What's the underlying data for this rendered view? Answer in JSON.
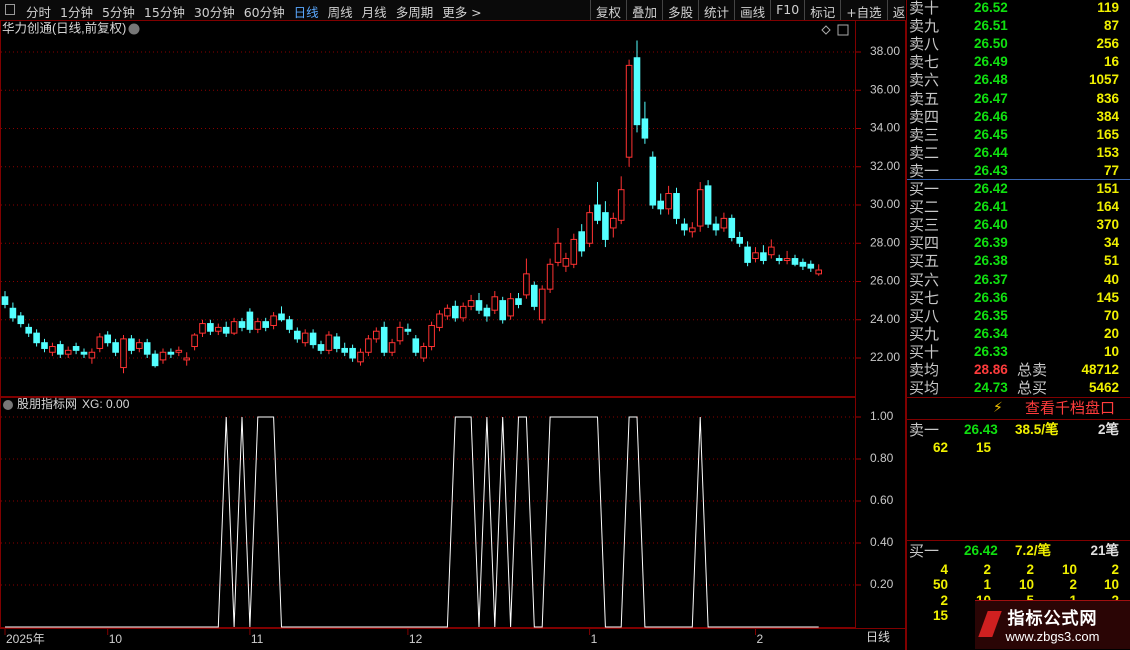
{
  "toolbar": {
    "left": [
      "分时",
      "1分钟",
      "5分钟",
      "15分钟",
      "30分钟",
      "60分钟",
      "日线",
      "周线",
      "月线",
      "多周期",
      "更多 >"
    ],
    "right": [
      "复权",
      "叠加",
      "多股",
      "统计",
      "画线",
      "F10",
      "标记",
      "+自选",
      "返回"
    ]
  },
  "chart_data": [
    {
      "type": "candlestick",
      "title": "华力创通(日线,前复权)",
      "up_color": "#ff3232",
      "down_color": "#54ffff",
      "grid": true,
      "ylim": [
        20,
        39.6
      ],
      "yticks": [
        {
          "value": 22,
          "label": "22.00"
        },
        {
          "value": 24,
          "label": "24.00"
        },
        {
          "value": 26,
          "label": "26.00"
        },
        {
          "value": 28,
          "label": "28.00"
        },
        {
          "value": 30,
          "label": "30.00"
        },
        {
          "value": 32,
          "label": "32.00"
        },
        {
          "value": 34,
          "label": "34.00"
        },
        {
          "value": 36,
          "label": "36.00"
        },
        {
          "value": 38,
          "label": "38.00"
        }
      ],
      "categories": [
        "2025年",
        null,
        null,
        null,
        null,
        null,
        null,
        null,
        null,
        null,
        null,
        null,
        null,
        "10",
        null,
        null,
        null,
        null,
        null,
        null,
        null,
        null,
        null,
        null,
        null,
        null,
        null,
        null,
        null,
        null,
        null,
        "11",
        null,
        null,
        null,
        null,
        null,
        null,
        null,
        null,
        null,
        null,
        null,
        null,
        null,
        null,
        null,
        null,
        null,
        null,
        null,
        "12",
        null,
        null,
        null,
        null,
        null,
        null,
        null,
        null,
        null,
        null,
        null,
        null,
        null,
        null,
        null,
        null,
        null,
        null,
        null,
        null,
        null,
        null,
        "1",
        null,
        null,
        null,
        null,
        null,
        null,
        null,
        null,
        null,
        null,
        null,
        null,
        null,
        null,
        null,
        null,
        null,
        null,
        null,
        null,
        "2",
        null,
        null,
        null,
        null,
        null,
        null,
        null,
        null
      ],
      "values": [
        [
          25.2,
          25.5,
          24.6,
          24.8
        ],
        [
          24.6,
          24.9,
          23.9,
          24.1
        ],
        [
          24.2,
          24.4,
          23.6,
          23.8
        ],
        [
          23.6,
          23.8,
          23.1,
          23.3
        ],
        [
          23.3,
          23.5,
          22.6,
          22.8
        ],
        [
          22.8,
          23.0,
          22.3,
          22.5
        ],
        [
          22.3,
          22.8,
          22.1,
          22.6
        ],
        [
          22.7,
          22.9,
          22.0,
          22.2
        ],
        [
          22.2,
          22.6,
          22.0,
          22.4
        ],
        [
          22.6,
          22.8,
          22.2,
          22.4
        ],
        [
          22.3,
          22.5,
          22.0,
          22.2
        ],
        [
          22.0,
          22.5,
          21.7,
          22.3
        ],
        [
          22.5,
          23.3,
          22.3,
          23.1
        ],
        [
          23.2,
          23.4,
          22.6,
          22.8
        ],
        [
          22.8,
          23.0,
          22.1,
          22.3
        ],
        [
          21.5,
          23.2,
          21.2,
          23.0
        ],
        [
          23.0,
          23.2,
          22.2,
          22.4
        ],
        [
          22.5,
          23.0,
          22.3,
          22.8
        ],
        [
          22.8,
          23.0,
          22.0,
          22.2
        ],
        [
          22.2,
          22.4,
          21.5,
          21.6
        ],
        [
          21.9,
          22.5,
          21.7,
          22.3
        ],
        [
          22.3,
          22.5,
          22.0,
          22.2
        ],
        [
          22.3,
          22.6,
          22.1,
          22.4
        ],
        [
          21.9,
          22.3,
          21.6,
          22.0
        ],
        [
          22.6,
          23.3,
          22.4,
          23.2
        ],
        [
          23.3,
          24.0,
          23.1,
          23.8
        ],
        [
          23.8,
          24.0,
          23.2,
          23.4
        ],
        [
          23.4,
          23.8,
          23.2,
          23.6
        ],
        [
          23.6,
          23.9,
          23.1,
          23.3
        ],
        [
          23.3,
          24.1,
          23.2,
          23.9
        ],
        [
          23.9,
          24.1,
          23.4,
          23.6
        ],
        [
          24.4,
          24.6,
          23.3,
          23.5
        ],
        [
          23.5,
          24.1,
          23.3,
          23.9
        ],
        [
          23.9,
          24.1,
          23.4,
          23.6
        ],
        [
          23.7,
          24.4,
          23.5,
          24.2
        ],
        [
          24.3,
          24.7,
          23.9,
          24.0
        ],
        [
          24.0,
          24.2,
          23.3,
          23.5
        ],
        [
          23.4,
          23.6,
          22.8,
          23.0
        ],
        [
          22.8,
          23.5,
          22.6,
          23.3
        ],
        [
          23.3,
          23.5,
          22.5,
          22.7
        ],
        [
          22.7,
          22.9,
          22.2,
          22.4
        ],
        [
          22.4,
          23.4,
          22.2,
          23.2
        ],
        [
          23.1,
          23.3,
          22.3,
          22.5
        ],
        [
          22.5,
          22.8,
          22.1,
          22.3
        ],
        [
          22.5,
          22.7,
          21.8,
          22.0
        ],
        [
          21.8,
          22.5,
          21.6,
          22.3
        ],
        [
          22.3,
          23.2,
          22.1,
          23.0
        ],
        [
          23.0,
          23.6,
          22.8,
          23.4
        ],
        [
          23.6,
          23.9,
          22.1,
          22.3
        ],
        [
          22.3,
          23.0,
          22.1,
          22.8
        ],
        [
          22.9,
          23.9,
          22.7,
          23.6
        ],
        [
          23.5,
          23.8,
          23.2,
          23.4
        ],
        [
          23.0,
          23.2,
          22.1,
          22.3
        ],
        [
          22.0,
          22.8,
          21.8,
          22.6
        ],
        [
          22.6,
          23.9,
          22.4,
          23.7
        ],
        [
          23.6,
          24.5,
          23.4,
          24.3
        ],
        [
          24.2,
          24.8,
          24.0,
          24.6
        ],
        [
          24.7,
          25.0,
          23.9,
          24.1
        ],
        [
          24.1,
          24.9,
          23.9,
          24.7
        ],
        [
          24.7,
          25.3,
          24.5,
          25.0
        ],
        [
          25.0,
          25.4,
          24.3,
          24.5
        ],
        [
          24.6,
          24.8,
          23.9,
          24.2
        ],
        [
          24.5,
          25.5,
          24.3,
          25.2
        ],
        [
          25.0,
          25.2,
          23.8,
          24.0
        ],
        [
          24.2,
          25.4,
          24.0,
          25.1
        ],
        [
          25.1,
          25.4,
          24.6,
          24.8
        ],
        [
          25.3,
          27.2,
          25.1,
          26.4
        ],
        [
          25.8,
          26.0,
          24.5,
          24.7
        ],
        [
          24.0,
          25.8,
          23.8,
          25.6
        ],
        [
          25.6,
          27.2,
          25.4,
          26.9
        ],
        [
          27.0,
          28.8,
          26.8,
          28.0
        ],
        [
          26.8,
          27.5,
          26.5,
          27.2
        ],
        [
          26.9,
          28.5,
          26.7,
          28.2
        ],
        [
          28.6,
          29.0,
          27.3,
          27.6
        ],
        [
          28.0,
          30.0,
          27.8,
          29.6
        ],
        [
          30.0,
          31.2,
          29.0,
          29.2
        ],
        [
          29.6,
          30.2,
          27.8,
          28.2
        ],
        [
          28.8,
          29.6,
          28.3,
          29.3
        ],
        [
          29.2,
          31.5,
          29.0,
          30.8
        ],
        [
          32.5,
          37.6,
          32.0,
          37.3
        ],
        [
          37.7,
          38.6,
          33.8,
          34.2
        ],
        [
          34.5,
          35.4,
          33.2,
          33.5
        ],
        [
          32.5,
          32.8,
          29.8,
          30.0
        ],
        [
          30.2,
          30.6,
          29.5,
          29.8
        ],
        [
          29.8,
          31.0,
          29.5,
          30.6
        ],
        [
          30.6,
          30.9,
          29.0,
          29.3
        ],
        [
          29.0,
          29.3,
          28.4,
          28.7
        ],
        [
          28.6,
          29.1,
          28.3,
          28.8
        ],
        [
          28.9,
          31.2,
          28.6,
          30.8
        ],
        [
          31.0,
          31.3,
          28.8,
          29.0
        ],
        [
          29.0,
          29.4,
          28.4,
          28.7
        ],
        [
          28.8,
          29.6,
          28.6,
          29.3
        ],
        [
          29.3,
          29.5,
          28.1,
          28.3
        ],
        [
          28.3,
          28.6,
          27.8,
          28.0
        ],
        [
          27.8,
          28.1,
          26.8,
          27.0
        ],
        [
          27.2,
          27.8,
          27.0,
          27.5
        ],
        [
          27.5,
          27.9,
          26.9,
          27.1
        ],
        [
          27.4,
          28.2,
          27.2,
          27.8
        ],
        [
          27.2,
          27.4,
          26.9,
          27.1
        ],
        [
          27.1,
          27.6,
          26.9,
          27.2
        ],
        [
          27.2,
          27.4,
          26.8,
          26.9
        ],
        [
          27.0,
          27.2,
          26.6,
          26.8
        ],
        [
          26.9,
          27.1,
          26.5,
          26.7
        ],
        [
          26.4,
          26.9,
          26.3,
          26.6
        ]
      ]
    },
    {
      "type": "line",
      "title": "股朋指标网",
      "label": "XG: 0.00",
      "color": "#ffffff",
      "grid": true,
      "ylim": [
        0,
        1.1
      ],
      "yticks": [
        {
          "value": 0.2,
          "label": "0.20"
        },
        {
          "value": 0.4,
          "label": "0.40"
        },
        {
          "value": 0.6,
          "label": "0.60"
        },
        {
          "value": 0.8,
          "label": "0.80"
        },
        {
          "value": 1,
          "label": "1.00"
        }
      ],
      "values": [
        0,
        0,
        0,
        0,
        0,
        0,
        0,
        0,
        0,
        0,
        0,
        0,
        0,
        0,
        0,
        0,
        0,
        0,
        0,
        0,
        0,
        0,
        0,
        0,
        0,
        0,
        0,
        0,
        1,
        0,
        1,
        0,
        1,
        1,
        1,
        0,
        0,
        0,
        0,
        0,
        0,
        0,
        0,
        0,
        0,
        0,
        0,
        0,
        0,
        0,
        0,
        0,
        0,
        0,
        0,
        0,
        0,
        1,
        1,
        1,
        0,
        1,
        0,
        1,
        0,
        1,
        1,
        0,
        0,
        1,
        1,
        1,
        1,
        1,
        1,
        1,
        0,
        0,
        0,
        1,
        1,
        0,
        0,
        0,
        0,
        0,
        0,
        0,
        1,
        0,
        0,
        0,
        0,
        0,
        0,
        0,
        0,
        0,
        0,
        0,
        0,
        0,
        0,
        0
      ]
    }
  ],
  "bottom_label": "日线",
  "order_book": {
    "sell": [
      [
        "卖十",
        "26.52",
        "119"
      ],
      [
        "卖九",
        "26.51",
        "87"
      ],
      [
        "卖八",
        "26.50",
        "256"
      ],
      [
        "卖七",
        "26.49",
        "16"
      ],
      [
        "卖六",
        "26.48",
        "1057"
      ],
      [
        "卖五",
        "26.47",
        "836"
      ],
      [
        "卖四",
        "26.46",
        "384"
      ],
      [
        "卖三",
        "26.45",
        "165"
      ],
      [
        "卖二",
        "26.44",
        "153"
      ],
      [
        "卖一",
        "26.43",
        "77"
      ]
    ],
    "buy": [
      [
        "买一",
        "26.42",
        "151"
      ],
      [
        "买二",
        "26.41",
        "164"
      ],
      [
        "买三",
        "26.40",
        "370"
      ],
      [
        "买四",
        "26.39",
        "34"
      ],
      [
        "买五",
        "26.38",
        "51"
      ],
      [
        "买六",
        "26.37",
        "40"
      ],
      [
        "买七",
        "26.36",
        "145"
      ],
      [
        "买八",
        "26.35",
        "70"
      ],
      [
        "买九",
        "26.34",
        "20"
      ],
      [
        "买十",
        "26.33",
        "10"
      ]
    ],
    "summary": [
      [
        "卖均",
        "28.86",
        "总卖",
        "48712"
      ],
      [
        "买均",
        "24.73",
        "总买",
        "5462"
      ]
    ]
  },
  "depth_button": "查看千档盘口",
  "ask_detail": {
    "label": "卖一",
    "price": "26.43",
    "avg": "38.5/笔",
    "count": "2笔",
    "queue": [
      [
        "62",
        "15"
      ]
    ]
  },
  "bid_detail": {
    "label": "买一",
    "price": "26.42",
    "avg": "7.2/笔",
    "count": "21笔",
    "queue": [
      [
        "4",
        "2",
        "2",
        "10",
        "2"
      ],
      [
        "50",
        "1",
        "10",
        "2",
        "10"
      ],
      [
        "2",
        "10",
        "5",
        "1",
        "2"
      ],
      [
        "15"
      ]
    ]
  },
  "watermark": {
    "title": "指标公式网",
    "url": "www.zbgs3.com"
  }
}
